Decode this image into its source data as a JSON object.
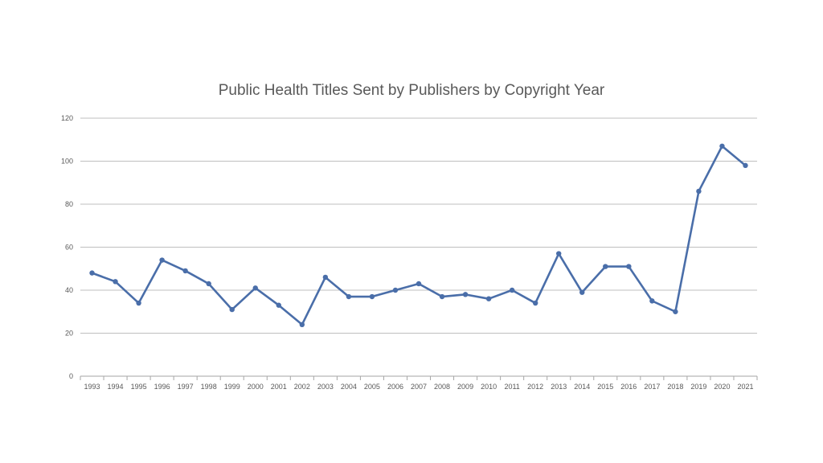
{
  "chart_data": {
    "type": "line",
    "title": "Public Health Titles Sent by Publishers by Copyright Year",
    "xlabel": "",
    "ylabel": "",
    "ylim": [
      0,
      120
    ],
    "yticks": [
      0,
      20,
      40,
      60,
      80,
      100,
      120
    ],
    "grid": true,
    "legend": "none",
    "categories": [
      "1993",
      "1994",
      "1995",
      "1996",
      "1997",
      "1998",
      "1999",
      "2000",
      "2001",
      "2002",
      "2003",
      "2004",
      "2005",
      "2006",
      "2007",
      "2008",
      "2009",
      "2010",
      "2011",
      "2012",
      "2013",
      "2014",
      "2015",
      "2016",
      "2017",
      "2018",
      "2019",
      "2020",
      "2021"
    ],
    "series": [
      {
        "values": [
          48,
          44,
          34,
          54,
          49,
          43,
          31,
          41,
          33,
          24,
          46,
          37,
          37,
          40,
          43,
          37,
          38,
          36,
          40,
          34,
          57,
          39,
          51,
          51,
          35,
          30,
          86,
          107,
          98
        ],
        "color": "#4a6ea9"
      }
    ],
    "gridline_color": "#bfbfbf",
    "axis_color": "#a6a6a6"
  }
}
